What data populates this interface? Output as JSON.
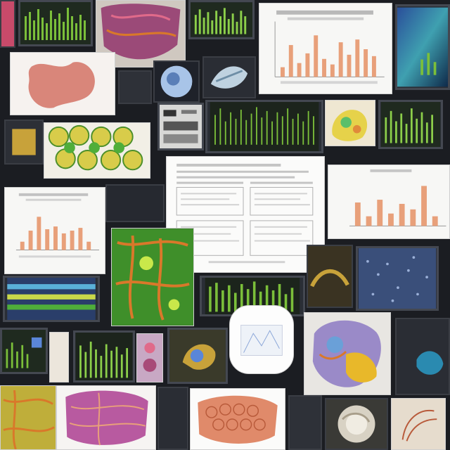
{
  "collage": {
    "description_free": true,
    "palette": {
      "background": "#1b1d22",
      "bar_green": "#7bbf3a",
      "bar_orange": "#e8a07a",
      "paper": "#f4f4f2",
      "tissue_pink": "#d9867a",
      "map_yellow": "#d8cc4a",
      "map_green": "#4fae3a",
      "vein_orange": "#d9782a",
      "purple": "#9b4aa8",
      "blue_screen": "#3a4f7a"
    },
    "tiles": [
      "green-bar-screen",
      "tissue-photo",
      "orange-bar-chart",
      "scatter-screen",
      "organ-photo",
      "cell-map",
      "document-page",
      "vein-map",
      "anatomy-model",
      "swirl-photo"
    ]
  }
}
